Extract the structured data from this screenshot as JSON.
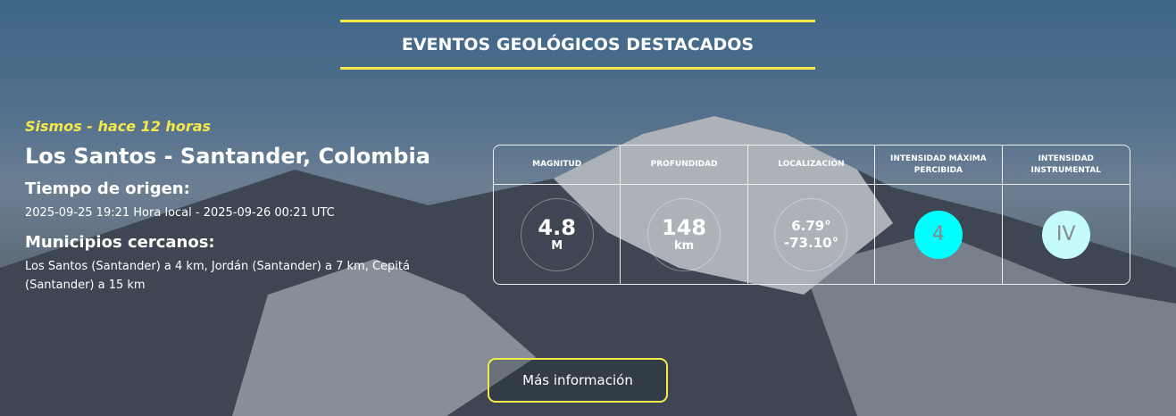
{
  "header": {
    "title": "EVENTOS GEOLÓGICOS DESTACADOS"
  },
  "event": {
    "subtitle": "Sismos - hace 12 horas",
    "location": "Los Santos - Santander, Colombia",
    "origin_label": "Tiempo de origen:",
    "origin_value": "2025-09-25 19:21 Hora local - 2025-09-26 00:21 UTC",
    "nearby_label": "Municipios cercanos:",
    "nearby_value": "Los Santos (Santander) a 4 km, Jordán (Santander) a 7 km, Cepitá (Santander) a 15 km"
  },
  "table": {
    "headers": [
      "MAGNITUD",
      "PROFUNDIDAD",
      "LOCALIZACIÓN",
      "INTENSIDAD MÁXIMA PERCIBIDA",
      "INTENSIDAD INSTRUMENTAL"
    ],
    "magnitude": {
      "value": "4.8",
      "unit": "M"
    },
    "depth": {
      "value": "148",
      "unit": "km"
    },
    "location": {
      "lat": "6.79°",
      "lon": "-73.10°"
    },
    "max_intensity": {
      "value": "4",
      "color": "#00ffff"
    },
    "instrumental_intensity": {
      "value": "IV",
      "color": "#c4fcfc"
    }
  },
  "button": {
    "label": "Más información"
  },
  "colors": {
    "accent": "#f5e84a"
  }
}
